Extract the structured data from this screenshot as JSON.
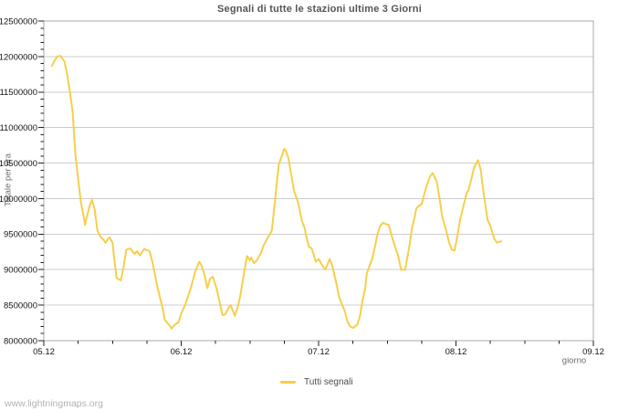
{
  "footer": {
    "watermark": "www.lightningmaps.org"
  },
  "colors": {
    "line": "#F7CE4B",
    "grid": "#CCCCCC",
    "border": "#A9A9A9",
    "tick": "#222222",
    "tick_label": "#141414",
    "background": "#FFFFFF"
  },
  "chart_data": {
    "type": "line",
    "title": "Segnali di tutte le stazioni ultime 3 Giorni",
    "xlabel": "giorno",
    "ylabel": "Totale per ora",
    "grid": "horizontal-major-only",
    "legend": {
      "position": "bottom-center",
      "entries": [
        "Tutti segnali"
      ]
    },
    "x_axis": {
      "unit": "day (dd.mm)",
      "range_days": [
        0,
        4
      ],
      "minor_step_days": 0.25,
      "ticks": [
        {
          "label": "05.12",
          "day": 0
        },
        {
          "label": "06.12",
          "day": 1
        },
        {
          "label": "07.12",
          "day": 2
        },
        {
          "label": "08.12",
          "day": 3
        },
        {
          "label": "09.12",
          "day": 4
        }
      ]
    },
    "y_axis": {
      "range": [
        8000000,
        12500000
      ],
      "minor_step": 100000,
      "major_step": 500000,
      "ticks": [
        {
          "label": "8000000",
          "value": 8000000
        },
        {
          "label": "8500000",
          "value": 8500000
        },
        {
          "label": "9000000",
          "value": 9000000
        },
        {
          "label": "9500000",
          "value": 9500000
        },
        {
          "label": "10000000",
          "value": 10000000
        },
        {
          "label": "10500000",
          "value": 10500000
        },
        {
          "label": "11000000",
          "value": 11000000
        },
        {
          "label": "11500000",
          "value": 11500000
        },
        {
          "label": "12000000",
          "value": 12000000
        },
        {
          "label": "12500000",
          "value": 12500000
        }
      ]
    },
    "series": [
      {
        "name": "Tutti segnali",
        "color": "#F7CE4B",
        "points": [
          [
            0.06,
            11870000
          ],
          [
            0.08,
            11950000
          ],
          [
            0.1,
            12000000
          ],
          [
            0.12,
            12010000
          ],
          [
            0.15,
            11930000
          ],
          [
            0.17,
            11750000
          ],
          [
            0.19,
            11500000
          ],
          [
            0.21,
            11220000
          ],
          [
            0.23,
            10620000
          ],
          [
            0.25,
            10280000
          ],
          [
            0.27,
            9950000
          ],
          [
            0.29,
            9750000
          ],
          [
            0.3,
            9630000
          ],
          [
            0.31,
            9720000
          ],
          [
            0.33,
            9880000
          ],
          [
            0.35,
            9980000
          ],
          [
            0.37,
            9850000
          ],
          [
            0.39,
            9550000
          ],
          [
            0.41,
            9470000
          ],
          [
            0.43,
            9430000
          ],
          [
            0.45,
            9380000
          ],
          [
            0.47,
            9440000
          ],
          [
            0.48,
            9450000
          ],
          [
            0.5,
            9380000
          ],
          [
            0.51,
            9190000
          ],
          [
            0.53,
            8880000
          ],
          [
            0.56,
            8850000
          ],
          [
            0.58,
            9030000
          ],
          [
            0.6,
            9280000
          ],
          [
            0.63,
            9300000
          ],
          [
            0.66,
            9220000
          ],
          [
            0.68,
            9260000
          ],
          [
            0.7,
            9200000
          ],
          [
            0.73,
            9290000
          ],
          [
            0.77,
            9260000
          ],
          [
            0.79,
            9110000
          ],
          [
            0.81,
            8920000
          ],
          [
            0.83,
            8730000
          ],
          [
            0.86,
            8500000
          ],
          [
            0.88,
            8300000
          ],
          [
            0.9,
            8250000
          ],
          [
            0.92,
            8200000
          ],
          [
            0.93,
            8170000
          ],
          [
            0.95,
            8220000
          ],
          [
            0.98,
            8260000
          ],
          [
            1.0,
            8380000
          ],
          [
            1.03,
            8510000
          ],
          [
            1.07,
            8740000
          ],
          [
            1.1,
            8960000
          ],
          [
            1.13,
            9110000
          ],
          [
            1.15,
            9050000
          ],
          [
            1.17,
            8920000
          ],
          [
            1.19,
            8740000
          ],
          [
            1.21,
            8870000
          ],
          [
            1.23,
            8900000
          ],
          [
            1.26,
            8720000
          ],
          [
            1.28,
            8540000
          ],
          [
            1.3,
            8360000
          ],
          [
            1.32,
            8370000
          ],
          [
            1.35,
            8480000
          ],
          [
            1.36,
            8500000
          ],
          [
            1.38,
            8400000
          ],
          [
            1.39,
            8350000
          ],
          [
            1.41,
            8460000
          ],
          [
            1.43,
            8630000
          ],
          [
            1.46,
            8980000
          ],
          [
            1.48,
            9190000
          ],
          [
            1.5,
            9130000
          ],
          [
            1.51,
            9170000
          ],
          [
            1.53,
            9090000
          ],
          [
            1.55,
            9130000
          ],
          [
            1.58,
            9230000
          ],
          [
            1.6,
            9340000
          ],
          [
            1.63,
            9450000
          ],
          [
            1.66,
            9550000
          ],
          [
            1.68,
            9920000
          ],
          [
            1.71,
            10480000
          ],
          [
            1.75,
            10700000
          ],
          [
            1.76,
            10680000
          ],
          [
            1.78,
            10570000
          ],
          [
            1.8,
            10350000
          ],
          [
            1.82,
            10120000
          ],
          [
            1.85,
            9950000
          ],
          [
            1.88,
            9680000
          ],
          [
            1.9,
            9580000
          ],
          [
            1.91,
            9470000
          ],
          [
            1.93,
            9320000
          ],
          [
            1.95,
            9300000
          ],
          [
            1.98,
            9110000
          ],
          [
            2.0,
            9150000
          ],
          [
            2.03,
            9050000
          ],
          [
            2.05,
            9000000
          ],
          [
            2.08,
            9150000
          ],
          [
            2.1,
            9050000
          ],
          [
            2.13,
            8800000
          ],
          [
            2.15,
            8610000
          ],
          [
            2.19,
            8420000
          ],
          [
            2.21,
            8270000
          ],
          [
            2.23,
            8200000
          ],
          [
            2.25,
            8180000
          ],
          [
            2.28,
            8220000
          ],
          [
            2.3,
            8330000
          ],
          [
            2.32,
            8570000
          ],
          [
            2.34,
            8750000
          ],
          [
            2.35,
            8940000
          ],
          [
            2.37,
            9050000
          ],
          [
            2.39,
            9150000
          ],
          [
            2.41,
            9320000
          ],
          [
            2.43,
            9510000
          ],
          [
            2.45,
            9620000
          ],
          [
            2.47,
            9660000
          ],
          [
            2.49,
            9640000
          ],
          [
            2.51,
            9630000
          ],
          [
            2.53,
            9490000
          ],
          [
            2.55,
            9360000
          ],
          [
            2.58,
            9190000
          ],
          [
            2.6,
            9000000
          ],
          [
            2.63,
            9000000
          ],
          [
            2.66,
            9320000
          ],
          [
            2.68,
            9580000
          ],
          [
            2.7,
            9750000
          ],
          [
            2.71,
            9860000
          ],
          [
            2.73,
            9900000
          ],
          [
            2.75,
            9920000
          ],
          [
            2.77,
            10070000
          ],
          [
            2.79,
            10200000
          ],
          [
            2.81,
            10310000
          ],
          [
            2.83,
            10360000
          ],
          [
            2.86,
            10240000
          ],
          [
            2.88,
            10010000
          ],
          [
            2.9,
            9750000
          ],
          [
            2.93,
            9540000
          ],
          [
            2.95,
            9380000
          ],
          [
            2.97,
            9280000
          ],
          [
            2.99,
            9270000
          ],
          [
            3.01,
            9470000
          ],
          [
            3.03,
            9700000
          ],
          [
            3.06,
            9940000
          ],
          [
            3.08,
            10090000
          ],
          [
            3.09,
            10110000
          ],
          [
            3.11,
            10260000
          ],
          [
            3.13,
            10430000
          ],
          [
            3.16,
            10540000
          ],
          [
            3.18,
            10410000
          ],
          [
            3.19,
            10240000
          ],
          [
            3.21,
            9960000
          ],
          [
            3.23,
            9700000
          ],
          [
            3.25,
            9620000
          ],
          [
            3.27,
            9490000
          ],
          [
            3.28,
            9430000
          ],
          [
            3.3,
            9380000
          ],
          [
            3.33,
            9400000
          ]
        ]
      }
    ]
  }
}
